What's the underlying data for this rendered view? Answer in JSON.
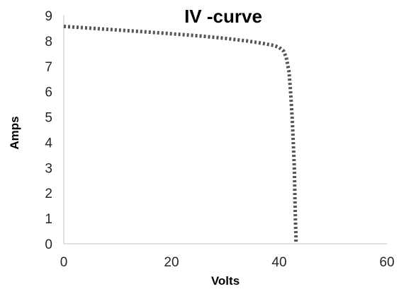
{
  "chart_data": {
    "type": "line",
    "title": "IV -curve",
    "xlabel": "Volts",
    "ylabel": "Amps",
    "xlim": [
      0,
      60
    ],
    "ylim": [
      0,
      9
    ],
    "xticks": [
      "0",
      "20",
      "40",
      "60"
    ],
    "yticks": [
      "0",
      "1",
      "2",
      "3",
      "4",
      "5",
      "6",
      "7",
      "8",
      "9"
    ],
    "grid": false,
    "legend": "none",
    "series": [
      {
        "line_style": "dotted",
        "color": "#555555",
        "x": [
          0,
          5,
          10,
          15,
          20,
          25,
          30,
          34,
          37,
          39,
          40,
          40.8,
          41.3,
          41.8,
          42.1,
          42.4,
          42.6,
          42.8,
          42.9,
          43.0,
          43.1,
          43.1
        ],
        "y": [
          8.57,
          8.5,
          8.43,
          8.36,
          8.28,
          8.2,
          8.1,
          8.0,
          7.9,
          7.82,
          7.74,
          7.6,
          7.35,
          6.8,
          6.0,
          5.0,
          4.0,
          3.0,
          2.0,
          1.0,
          0.3,
          0.0
        ]
      }
    ]
  }
}
